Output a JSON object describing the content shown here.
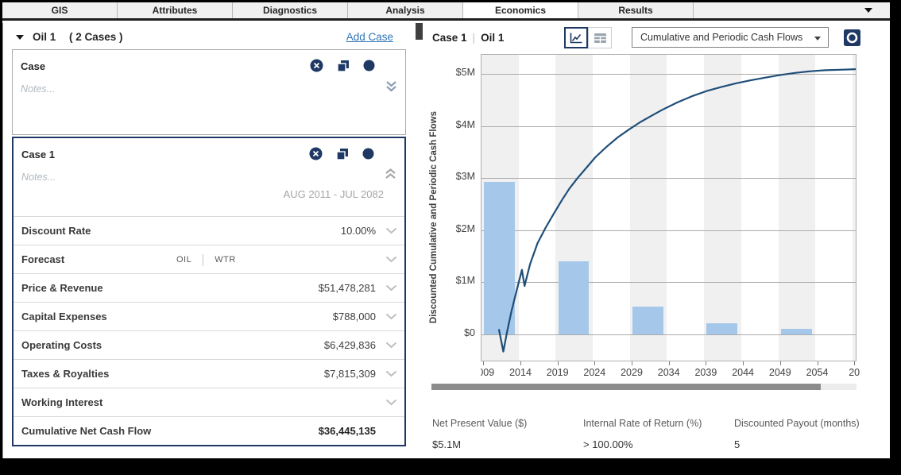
{
  "tabbar": {
    "tabs": [
      {
        "label": "GIS"
      },
      {
        "label": "Attributes"
      },
      {
        "label": "Diagnostics"
      },
      {
        "label": "Analysis"
      },
      {
        "label": "Economics",
        "active": true
      },
      {
        "label": "Results"
      }
    ]
  },
  "left_panel": {
    "group_title": "Oil 1",
    "group_count": "( 2 Cases )",
    "add_case_label": "Add Case",
    "cards": [
      {
        "title": "Case",
        "notes_placeholder": "Notes...",
        "icons": [
          "delete-icon",
          "duplicate-icon",
          "status-dot-icon",
          "expand-double-chevron-down-icon"
        ]
      },
      {
        "title": "Case 1",
        "notes_placeholder": "Notes...",
        "date_range": "AUG 2011 - JUL 2082",
        "icons": [
          "delete-icon",
          "duplicate-icon",
          "status-dot-icon",
          "collapse-double-chevron-up-icon"
        ]
      }
    ],
    "rows": [
      {
        "label": "Discount Rate",
        "value": "10.00%"
      },
      {
        "label": "Forecast",
        "value": "",
        "tags": [
          "OIL",
          "WTR"
        ]
      },
      {
        "label": "Price & Revenue",
        "value": "$51,478,281"
      },
      {
        "label": "Capital Expenses",
        "value": "$788,000"
      },
      {
        "label": "Operating Costs",
        "value": "$6,429,836"
      },
      {
        "label": "Taxes & Royalties",
        "value": "$7,815,309"
      },
      {
        "label": "Working Interest",
        "value": ""
      },
      {
        "label": "Cumulative Net Cash Flow",
        "value": "$36,445,135"
      }
    ]
  },
  "right_panel": {
    "title_case": "Case 1",
    "title_sep": "|",
    "title_entity": "Oil 1",
    "view_toggle_icons": [
      "chart-view-icon",
      "table-view-icon"
    ],
    "view_dropdown_value": "Cumulative and Periodic Cash Flows",
    "fullscreen_icon": "focus-expand-icon",
    "stats": [
      {
        "label": "Net Present Value ($)",
        "value": "$5.1M"
      },
      {
        "label": "Internal Rate of Return (%)",
        "value": "> 100.00%"
      },
      {
        "label": "Discounted Payout (months)",
        "value": "5"
      }
    ]
  },
  "chart_data": {
    "type": "bar+line combo",
    "title": "Cumulative and Periodic Cash Flows",
    "ylabel": "Discounted Cumulative and Periodic Cash Flows",
    "y_axis": {
      "unit": "$M",
      "min": 0,
      "max": 5,
      "tick_values_M": [
        0,
        1,
        2,
        3,
        4,
        5
      ],
      "tick_labels": [
        "$0",
        "$1M",
        "$2M",
        "$3M",
        "$4M",
        "$5M"
      ]
    },
    "x_axis": {
      "start_year": 2008.65,
      "end_year": 2059.3,
      "ticks": [
        {
          "year": 2009,
          "label": "2009"
        },
        {
          "year": 2014,
          "label": "2014"
        },
        {
          "year": 2019,
          "label": "2019"
        },
        {
          "year": 2024,
          "label": "2024"
        },
        {
          "year": 2029,
          "label": "2029"
        },
        {
          "year": 2034,
          "label": "2034"
        },
        {
          "year": 2039,
          "label": "2039"
        },
        {
          "year": 2044,
          "label": "2044"
        },
        {
          "year": 2049,
          "label": "2049"
        },
        {
          "year": 2054,
          "label": "2054"
        },
        {
          "year": 2059,
          "label": "20"
        }
      ]
    },
    "bars": {
      "name": "Periodic Cash Flows",
      "period_start_years": [
        2009,
        2019,
        2029,
        2039,
        2049
      ],
      "values_M": [
        2.92,
        1.4,
        0.53,
        0.21,
        0.1
      ],
      "bar_width_years": 4.15,
      "color": "#A5C8EA"
    },
    "line": {
      "name": "Cumulative Cash Flows",
      "color": "#1F4E79",
      "points_year_M": [
        [
          2011.0,
          0.1
        ],
        [
          2011.6,
          -0.33
        ],
        [
          2012.1,
          0.05
        ],
        [
          2012.7,
          0.45
        ],
        [
          2013.4,
          0.85
        ],
        [
          2014.1,
          1.24
        ],
        [
          2014.45,
          0.93
        ],
        [
          2015.2,
          1.35
        ],
        [
          2016.2,
          1.75
        ],
        [
          2017.3,
          2.05
        ],
        [
          2018.4,
          2.32
        ],
        [
          2019.5,
          2.58
        ],
        [
          2020.5,
          2.8
        ],
        [
          2021.6,
          3.0
        ],
        [
          2022.8,
          3.2
        ],
        [
          2024,
          3.4
        ],
        [
          2025.5,
          3.6
        ],
        [
          2027,
          3.78
        ],
        [
          2028.5,
          3.93
        ],
        [
          2030,
          4.07
        ],
        [
          2031.5,
          4.19
        ],
        [
          2033,
          4.31
        ],
        [
          2035,
          4.45
        ],
        [
          2037,
          4.57
        ],
        [
          2039,
          4.67
        ],
        [
          2041,
          4.75
        ],
        [
          2043,
          4.82
        ],
        [
          2045,
          4.88
        ],
        [
          2047,
          4.93
        ],
        [
          2049,
          4.98
        ],
        [
          2051,
          5.02
        ],
        [
          2053,
          5.05
        ],
        [
          2055,
          5.07
        ],
        [
          2057,
          5.08
        ],
        [
          2059.2,
          5.09
        ]
      ]
    },
    "plot": {
      "band_width_years": 5,
      "band_colors": [
        "#F0F0F0",
        "#FFFFFF"
      ],
      "gridline_color": "#ABABAB",
      "grid": "horizontal",
      "legend": "none"
    }
  },
  "colors": {
    "accent_navy": "#1F3864",
    "line_navy": "#1F4E79",
    "bar_blue": "#A5C8EA",
    "link_blue": "#2E75B6"
  }
}
